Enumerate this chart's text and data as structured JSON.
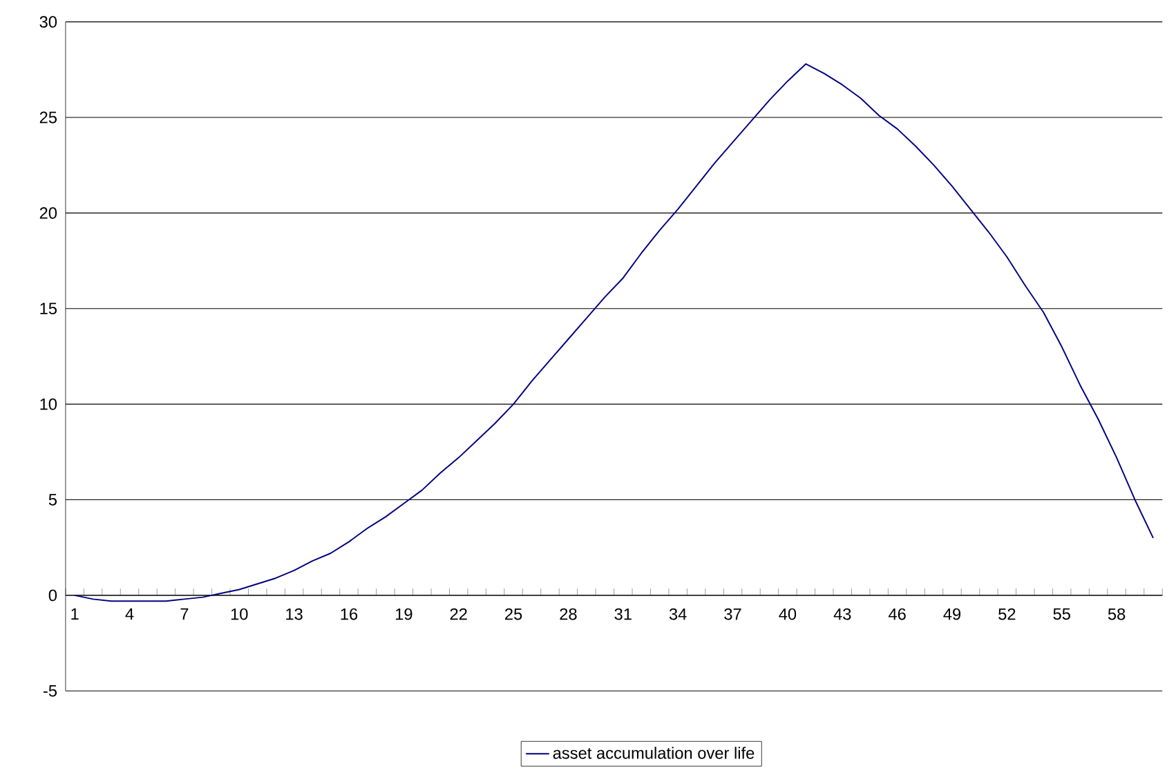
{
  "chart_data": {
    "type": "line",
    "categories": [
      "1",
      null,
      null,
      "4",
      null,
      null,
      "7",
      null,
      null,
      "10",
      null,
      null,
      "13",
      null,
      null,
      "16",
      null,
      null,
      "19",
      null,
      null,
      "22",
      null,
      null,
      "25",
      null,
      null,
      "28",
      null,
      null,
      "31",
      null,
      null,
      "34",
      null,
      null,
      "37",
      null,
      null,
      "40",
      null,
      null,
      "43",
      null,
      null,
      "46",
      null,
      null,
      "49",
      null,
      null,
      "52",
      null,
      null,
      "55",
      null,
      null,
      "58",
      null,
      null
    ],
    "series": [
      {
        "name": "asset accumulation over life",
        "color": "#000080",
        "values": [
          0,
          -0.2,
          -0.3,
          -0.3,
          -0.3,
          -0.3,
          -0.2,
          -0.1,
          0.1,
          0.3,
          0.6,
          0.9,
          1.3,
          1.8,
          2.2,
          2.8,
          3.5,
          4.1,
          4.8,
          5.5,
          6.4,
          7.2,
          8.1,
          9.0,
          10.0,
          11.2,
          12.3,
          13.4,
          14.5,
          15.6,
          16.6,
          17.9,
          19.1,
          20.2,
          21.4,
          22.6,
          23.7,
          24.8,
          25.9,
          26.9,
          27.8,
          27.3,
          26.7,
          26.0,
          25.1,
          24.4,
          23.5,
          22.5,
          21.4,
          20.2,
          19.0,
          17.7,
          16.2,
          14.8,
          13.0,
          11.0,
          9.2,
          7.2,
          5.0,
          3.0
        ]
      }
    ],
    "ylim": [
      -5,
      30
    ],
    "yticks": [
      -5,
      0,
      5,
      10,
      15,
      20,
      25,
      30
    ],
    "grid": "y",
    "legend": "bottom",
    "marker": "none",
    "line_style": "solid"
  }
}
